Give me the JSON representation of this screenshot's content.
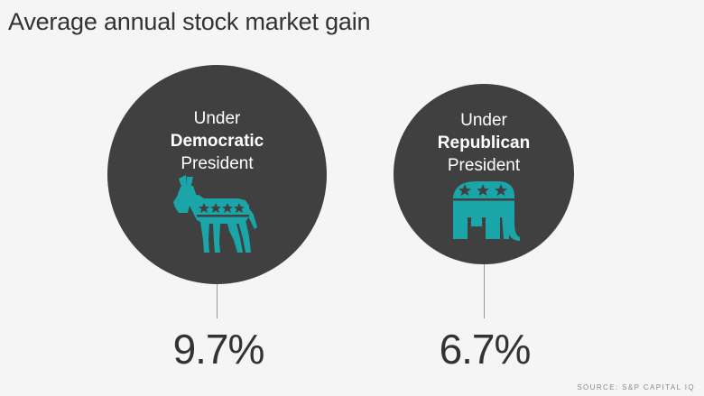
{
  "title": "Average annual stock market gain",
  "source": "SOURCE: S&P CAPITAL IQ",
  "colors": {
    "background": "#f5f5f5",
    "circle": "#404040",
    "mascot": "#1aa5a8",
    "text": "#333333"
  },
  "chart_data": {
    "type": "bubble",
    "title": "Average annual stock market gain",
    "unit": "%",
    "series": [
      {
        "label_lines": [
          "Under",
          "Democratic",
          "President"
        ],
        "icon": "donkey-icon",
        "value": 9.7,
        "value_label": "9.7%"
      },
      {
        "label_lines": [
          "Under",
          "Republican",
          "President"
        ],
        "icon": "elephant-icon",
        "value": 6.7,
        "value_label": "6.7%"
      }
    ]
  }
}
